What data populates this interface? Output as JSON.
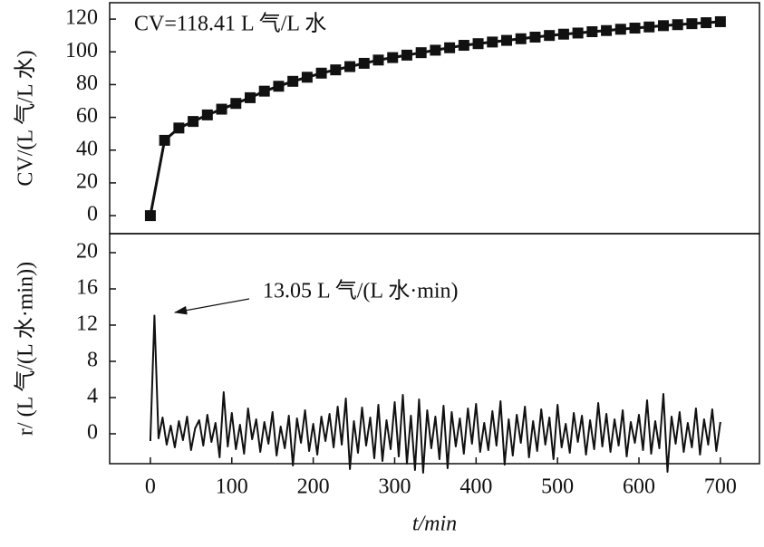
{
  "chart_data": [
    {
      "type": "line",
      "marker": "square",
      "color": "#111111",
      "ylabel": "CV/(L 气/L 水)",
      "annotation": "CV=118.41 L 气/L 水",
      "xlim": [
        -50,
        748
      ],
      "ylim": [
        -11,
        130
      ],
      "yticks": [
        0,
        20,
        40,
        60,
        80,
        100,
        120
      ],
      "x": [
        0,
        17.5,
        35,
        52.5,
        70,
        87.5,
        105,
        122.5,
        140,
        157.5,
        175,
        192.5,
        210,
        227.5,
        245,
        262.5,
        280,
        297.5,
        315,
        332.5,
        350,
        367.5,
        385,
        402.5,
        420,
        437.5,
        455,
        472.5,
        490,
        507.5,
        525,
        542.5,
        560,
        577.5,
        595,
        612.5,
        630,
        647.5,
        665,
        682.5,
        700
      ],
      "series": [
        {
          "color": "#111111",
          "values": [
            0,
            46,
            53.5,
            57.5,
            61.5,
            65,
            68.5,
            72,
            76,
            79,
            82,
            84.5,
            87,
            89,
            91,
            93,
            95,
            96.5,
            98,
            99.5,
            101,
            102.5,
            104,
            105,
            106,
            107,
            108,
            109,
            110,
            110.8,
            111.5,
            112.3,
            113,
            113.8,
            114.5,
            115.2,
            116,
            116.6,
            117.2,
            117.8,
            118.41
          ]
        }
      ]
    },
    {
      "type": "line",
      "color": "#111111",
      "ylabel": "r/ (L 气/(L 水·min))",
      "xlabel": "t/min",
      "annotation": "13.05 L 气/(L 水·min)",
      "xlim": [
        -50,
        748
      ],
      "ylim": [
        -3.3,
        22.1
      ],
      "yticks": [
        0,
        4,
        8,
        12,
        16,
        20
      ],
      "xticks": [
        0,
        100,
        200,
        300,
        400,
        500,
        600,
        700
      ],
      "x": [
        0,
        5,
        10,
        15,
        20,
        25,
        30,
        35,
        40,
        45,
        50,
        55,
        60,
        65,
        70,
        75,
        80,
        85,
        90,
        95,
        100,
        105,
        110,
        115,
        120,
        125,
        130,
        135,
        140,
        145,
        150,
        155,
        160,
        165,
        170,
        175,
        180,
        185,
        190,
        195,
        200,
        205,
        210,
        215,
        220,
        225,
        230,
        235,
        240,
        245,
        250,
        255,
        260,
        265,
        270,
        275,
        280,
        285,
        290,
        295,
        300,
        305,
        310,
        315,
        320,
        325,
        330,
        335,
        340,
        345,
        350,
        355,
        360,
        365,
        370,
        375,
        380,
        385,
        390,
        395,
        400,
        405,
        410,
        415,
        420,
        425,
        430,
        435,
        440,
        445,
        450,
        455,
        460,
        465,
        470,
        475,
        480,
        485,
        490,
        495,
        500,
        505,
        510,
        515,
        520,
        525,
        530,
        535,
        540,
        545,
        550,
        555,
        560,
        565,
        570,
        575,
        580,
        585,
        590,
        595,
        600,
        605,
        610,
        615,
        620,
        625,
        630,
        635,
        640,
        645,
        650,
        655,
        660,
        665,
        670,
        675,
        680,
        685,
        690,
        695,
        700
      ],
      "series": [
        {
          "color": "#111111",
          "values": [
            -0.8,
            13.05,
            -0.5,
            1.8,
            -1.2,
            0.9,
            -1.5,
            1.4,
            -0.7,
            1.9,
            -1.8,
            0.6,
            1.5,
            -1.3,
            2.1,
            -0.9,
            1.2,
            -2.6,
            4.6,
            -1.4,
            2.3,
            -1.7,
            1.0,
            -2.2,
            2.8,
            -0.6,
            1.6,
            -2.0,
            1.3,
            -1.1,
            2.4,
            -2.4,
            0.8,
            -1.6,
            2.0,
            -3.5,
            1.7,
            -1.0,
            2.6,
            -1.9,
            1.1,
            -2.3,
            1.9,
            -0.8,
            2.2,
            -1.5,
            3.0,
            -1.2,
            3.9,
            -3.9,
            1.4,
            -2.1,
            2.9,
            -1.3,
            1.8,
            -2.7,
            3.2,
            -3.0,
            1.5,
            -1.7,
            3.5,
            -2.5,
            4.3,
            -3.3,
            2.0,
            -4.0,
            3.8,
            -4.3,
            2.6,
            -1.6,
            1.9,
            -2.8,
            3.1,
            -3.8,
            2.4,
            -1.4,
            1.7,
            -2.2,
            2.8,
            -1.1,
            3.3,
            -2.0,
            1.2,
            -1.8,
            2.5,
            -1.3,
            3.6,
            -3.4,
            1.6,
            -2.4,
            2.1,
            -1.0,
            3.0,
            -2.6,
            1.4,
            -1.9,
            2.7,
            -1.2,
            1.8,
            -2.8,
            3.2,
            -1.5,
            1.1,
            -2.1,
            2.3,
            -0.9,
            2.0,
            -2.3,
            1.5,
            -1.7,
            3.4,
            -1.4,
            2.2,
            -2.0,
            1.6,
            -1.3,
            2.6,
            -2.5,
            1.3,
            -1.0,
            2.1,
            -1.8,
            3.7,
            -2.2,
            1.4,
            -1.6,
            4.4,
            -4.2,
            1.9,
            -1.1,
            2.4,
            -2.0,
            1.2,
            -1.5,
            2.8,
            -2.3,
            1.6,
            -1.2,
            2.7,
            -1.9,
            1.3
          ]
        }
      ]
    }
  ]
}
